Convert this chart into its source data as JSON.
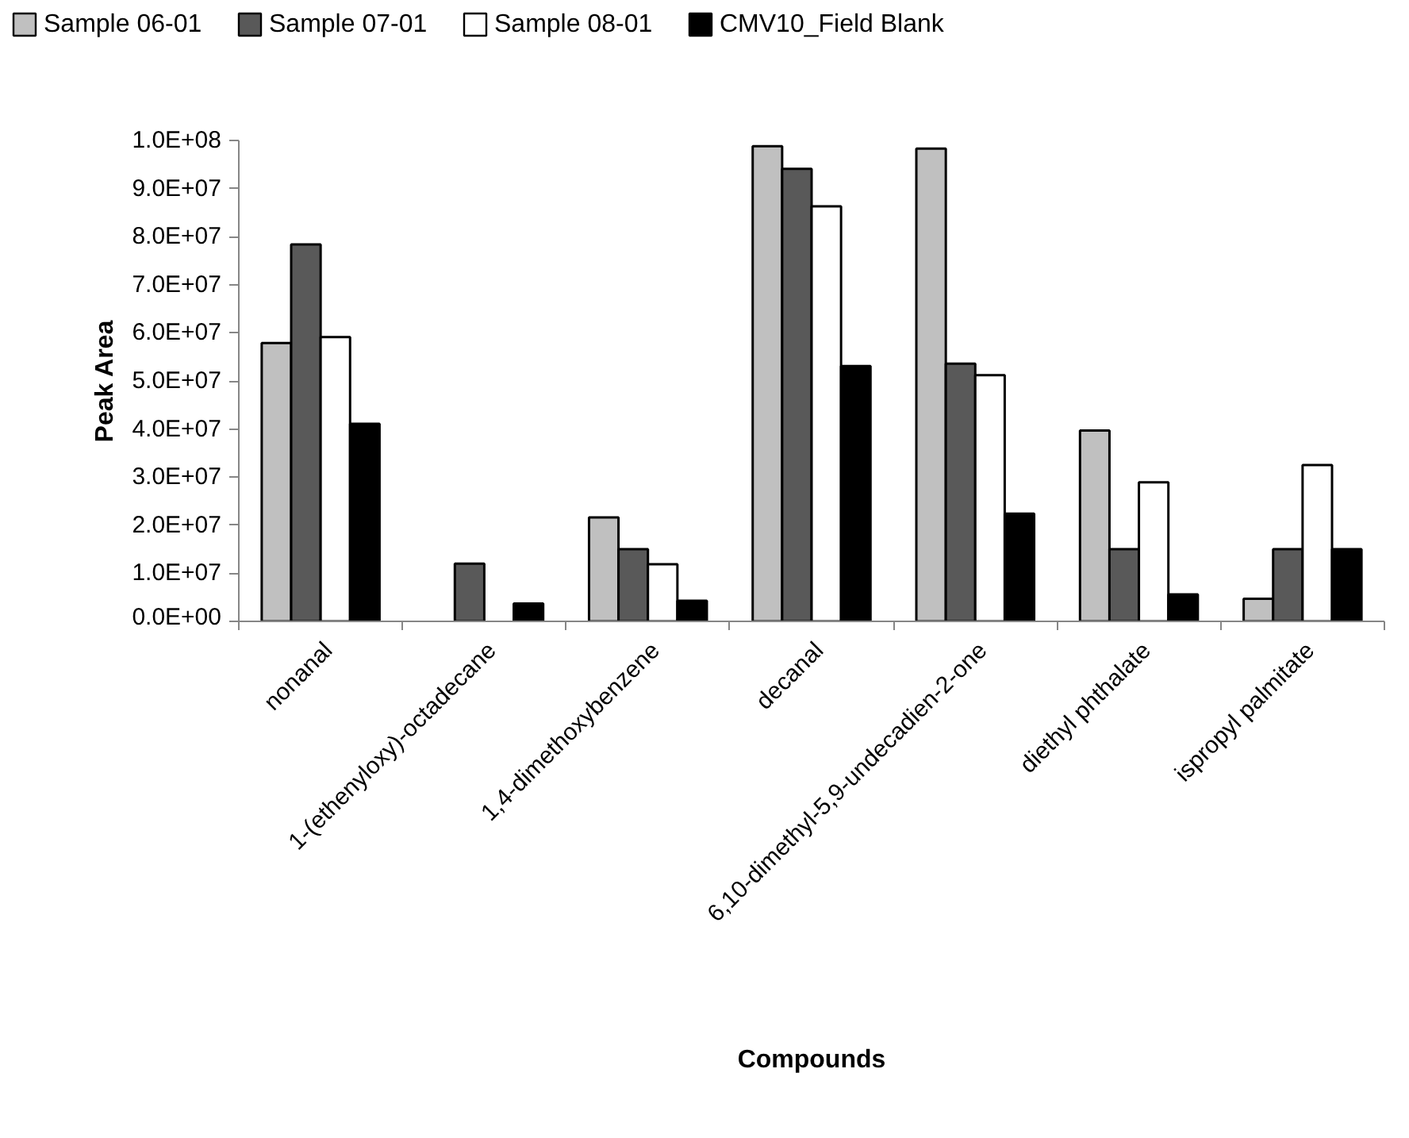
{
  "chart_data": {
    "type": "bar",
    "xlabel": "Compounds",
    "ylabel": "Peak Area",
    "categories": [
      "nonanal",
      "1-(ethenyloxy)-octadecane",
      "1,4-dimethoxybenzene",
      "decanal",
      "6,10-dimethyl-5,9-undecadien-2-one",
      "diethyl phthalate",
      "ispropyl palmitate"
    ],
    "series": [
      {
        "name": "Sample 06-01",
        "color": "#c0c0c0",
        "values": [
          57900000,
          null,
          21600000,
          98800000,
          98300000,
          39700000,
          4700000
        ]
      },
      {
        "name": "Sample 07-01",
        "color": "#595959",
        "values": [
          78400000,
          12000000,
          15000000,
          94100000,
          53600000,
          15000000,
          15000000
        ]
      },
      {
        "name": "Sample 08-01",
        "color": "#ffffff",
        "values": [
          59100000,
          null,
          11900000,
          86300000,
          51200000,
          28900000,
          32500000
        ]
      },
      {
        "name": "CMV10_Field Blank",
        "color": "#000000",
        "values": [
          41100000,
          3700000,
          4300000,
          53100000,
          22400000,
          5600000,
          15000000
        ]
      }
    ],
    "ylim": [
      0,
      100000000
    ],
    "yticks": [
      {
        "value": 0,
        "label": "0.0E+00"
      },
      {
        "value": 10000000,
        "label": "1.0E+07"
      },
      {
        "value": 20000000,
        "label": "2.0E+07"
      },
      {
        "value": 30000000,
        "label": "3.0E+07"
      },
      {
        "value": 40000000,
        "label": "4.0E+07"
      },
      {
        "value": 50000000,
        "label": "5.0E+07"
      },
      {
        "value": 60000000,
        "label": "6.0E+07"
      },
      {
        "value": 70000000,
        "label": "7.0E+07"
      },
      {
        "value": 80000000,
        "label": "8.0E+07"
      },
      {
        "value": 90000000,
        "label": "9.0E+07"
      },
      {
        "value": 100000000,
        "label": "1.0E+08"
      }
    ],
    "legend": "top",
    "grid": false
  }
}
